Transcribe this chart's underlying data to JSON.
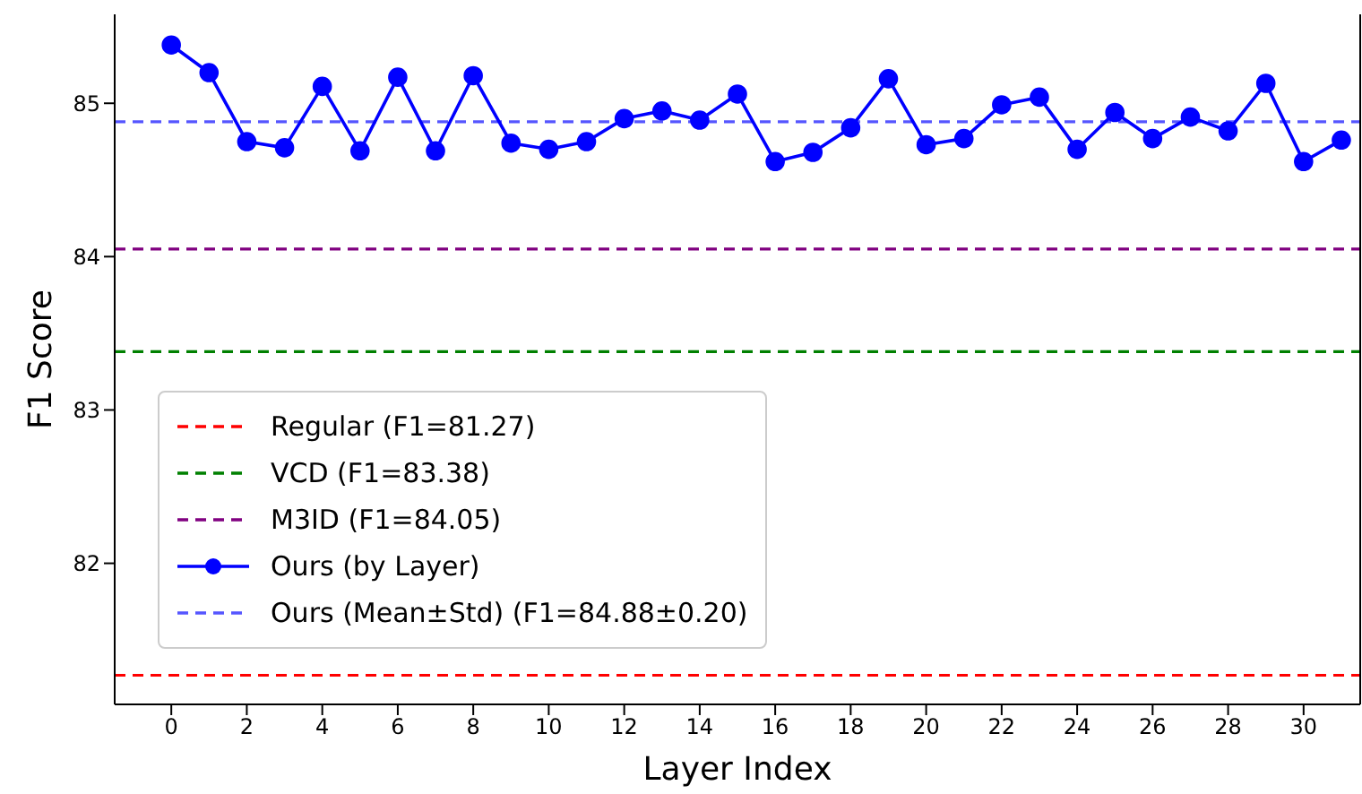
{
  "chart_data": {
    "type": "line",
    "xlabel": "Layer Index",
    "ylabel": "F1 Score",
    "x": [
      0,
      1,
      2,
      3,
      4,
      5,
      6,
      7,
      8,
      9,
      10,
      11,
      12,
      13,
      14,
      15,
      16,
      17,
      18,
      19,
      20,
      21,
      22,
      23,
      24,
      25,
      26,
      27,
      28,
      29,
      30,
      31
    ],
    "series": [
      {
        "name": "Ours (by Layer)",
        "color": "#0000ff",
        "values": [
          85.38,
          85.2,
          84.75,
          84.71,
          85.11,
          84.69,
          85.17,
          84.69,
          85.18,
          84.74,
          84.7,
          84.75,
          84.9,
          84.95,
          84.89,
          85.06,
          84.62,
          84.68,
          84.84,
          85.16,
          84.73,
          84.77,
          84.99,
          85.04,
          84.7,
          84.94,
          84.77,
          84.91,
          84.82,
          85.13,
          84.62,
          84.76
        ]
      }
    ],
    "ref_lines": [
      {
        "axis": "y",
        "value": 81.27,
        "label": "Regular (F1=81.27)",
        "color": "#ff0000",
        "line_style": "dashed"
      },
      {
        "axis": "y",
        "value": 83.38,
        "label": "VCD (F1=83.38)",
        "color": "#008000",
        "line_style": "dashed"
      },
      {
        "axis": "y",
        "value": 84.05,
        "label": "M3ID (F1=84.05)",
        "color": "#800080",
        "line_style": "dashed"
      },
      {
        "axis": "y",
        "value": 84.88,
        "label": "Ours (Mean±Std) (F1=84.88±0.20)",
        "color": "#5555ff",
        "line_style": "dashed"
      }
    ],
    "xlim": [
      -1.5,
      31.5
    ],
    "ylim": [
      81.08,
      85.58
    ],
    "xticks": [
      0,
      2,
      4,
      6,
      8,
      10,
      12,
      14,
      16,
      18,
      20,
      22,
      24,
      26,
      28,
      30
    ],
    "yticks": [
      82,
      83,
      84,
      85
    ],
    "grid": false,
    "legend": "bottom left",
    "marker": "circle",
    "line_style": "solid"
  }
}
